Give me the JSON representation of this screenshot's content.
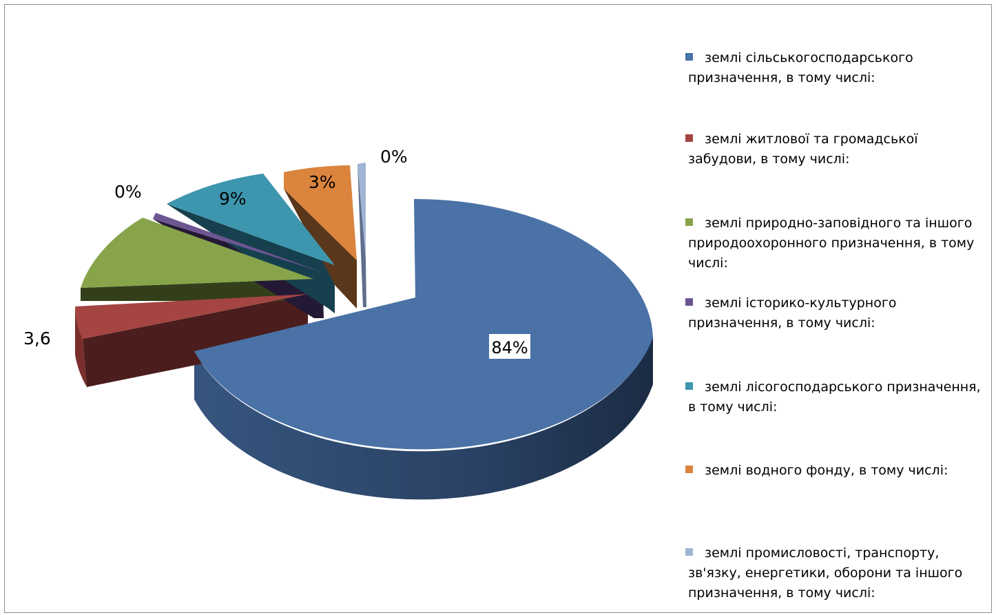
{
  "chart_data": {
    "type": "pie",
    "title": "",
    "pie_3d": true,
    "exploded": true,
    "legend_position": "right",
    "slices": [
      {
        "name": "землі сільськогосподарського призначення, в тому числі:",
        "value": 84,
        "label": "84%",
        "color": "#4a72a6"
      },
      {
        "name": "землі житлової та громадської забудови, в тому числі:",
        "value": 3.6,
        "label": "3,6",
        "color": "#a44542"
      },
      {
        "name": "землі природно-заповідного та іншого природоохоронного призначення, в тому числі:",
        "value": 12,
        "label": "",
        "color": "#87a44a"
      },
      {
        "name": "землі історико-культурного призначення, в тому числі:",
        "value": 0.4,
        "label": "0%",
        "color": "#6d5592"
      },
      {
        "name": "землі лісогосподарського призначення, в тому числі:",
        "value": 9,
        "label": "9%",
        "color": "#3d96ae"
      },
      {
        "name": "землі водного фонду, в тому числі:",
        "value": 3,
        "label": "3%",
        "color": "#db843d"
      },
      {
        "name": "землі промисловості, транспорту, зв'язку, енергетики, оборони та іншого призначення, в тому числі:",
        "value": 0.4,
        "label": "0%",
        "color": "#a1b4d4"
      }
    ]
  }
}
